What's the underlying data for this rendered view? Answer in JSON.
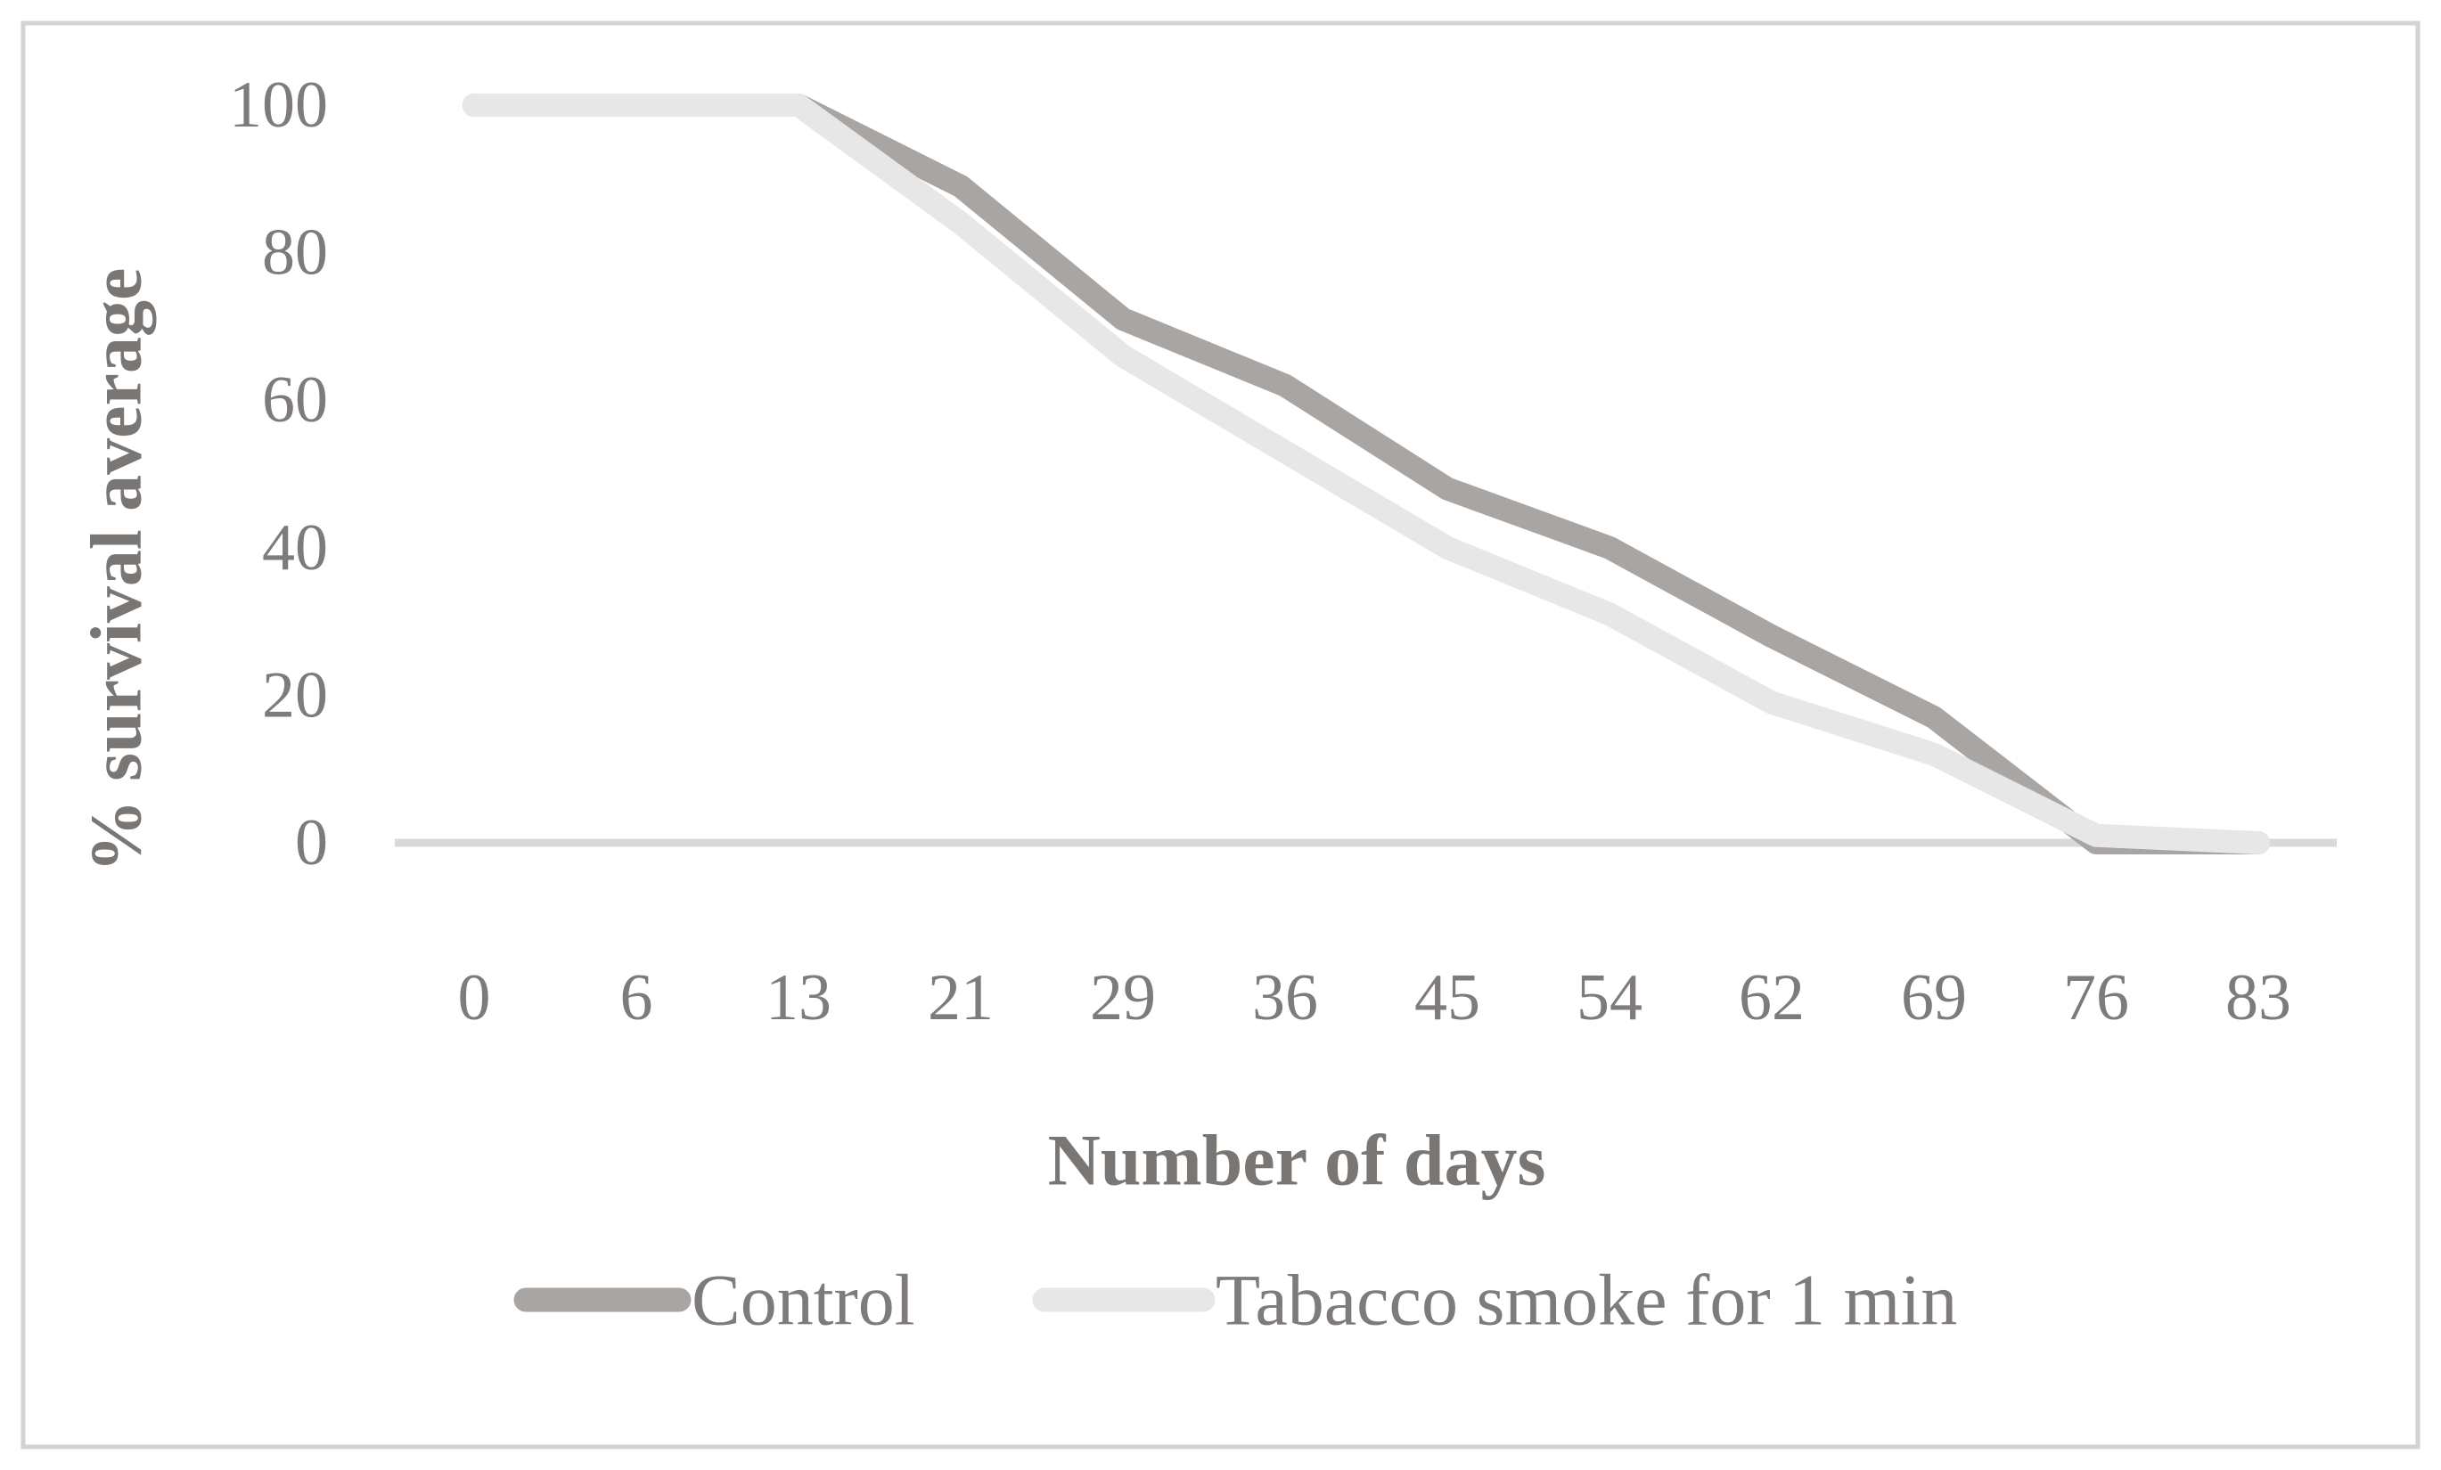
{
  "figure": {
    "kind": "line chart",
    "background": "#ffffff"
  },
  "chart_data": {
    "type": "line",
    "title": "",
    "xlabel": "Number of days",
    "ylabel": "% survival average",
    "x_tick_labels": [
      "0",
      "6",
      "13",
      "21",
      "29",
      "36",
      "45",
      "54",
      "62",
      "69",
      "76",
      "83"
    ],
    "x": [
      0,
      6,
      13,
      21,
      29,
      36,
      45,
      54,
      62,
      69,
      76,
      83
    ],
    "y_ticks": [
      0,
      20,
      40,
      60,
      80,
      100
    ],
    "ylim": [
      0,
      100
    ],
    "grid": false,
    "legend_position": "bottom",
    "series": [
      {
        "name": "Control",
        "color": "#a8a5a3",
        "values": [
          100,
          100,
          100,
          89,
          71,
          62,
          48,
          40,
          28,
          17,
          0,
          0
        ]
      },
      {
        "name": "Tabacco smoke for 1 min",
        "color": "#e8e7e7",
        "values": [
          100,
          100,
          100,
          84,
          66,
          53,
          40,
          31,
          19,
          12,
          1,
          0
        ]
      }
    ]
  },
  "colors": {
    "axis_line": "#d9d9d9",
    "figure_border": "#d3d3d3",
    "text": "#7f7b7a"
  }
}
